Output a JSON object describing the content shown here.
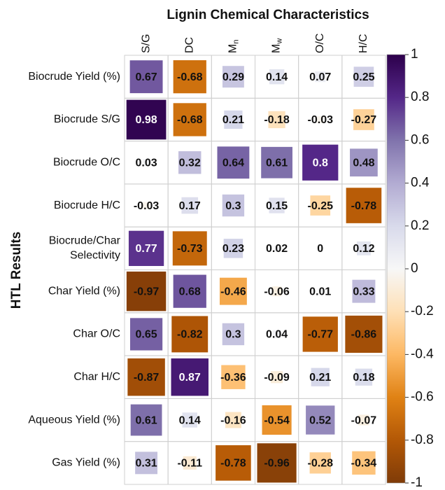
{
  "chart_data": {
    "type": "heatmap",
    "title": "Lignin Chemical Characteristics",
    "y_label": "HTL Results",
    "columns": [
      "S/G",
      "DC",
      {
        "main": "M",
        "sub": "n"
      },
      {
        "main": "M",
        "sub": "w"
      },
      "O/C",
      "H/C"
    ],
    "rows": [
      "Biocrude Yield (%)",
      "Biocrude S/G",
      "Biocrude O/C",
      "Biocrude H/C",
      [
        "Biocrude/Char",
        "Selectivity"
      ],
      "Char Yield (%)",
      "Char O/C",
      "Char H/C",
      "Aqueous Yield (%)",
      "Gas Yield (%)"
    ],
    "values": [
      [
        0.67,
        -0.68,
        0.29,
        0.14,
        0.07,
        0.25
      ],
      [
        0.98,
        -0.68,
        0.21,
        -0.18,
        -0.03,
        -0.27
      ],
      [
        0.03,
        0.32,
        0.64,
        0.61,
        0.8,
        0.48
      ],
      [
        -0.03,
        0.17,
        0.3,
        0.15,
        -0.25,
        -0.78
      ],
      [
        0.77,
        -0.73,
        0.23,
        0.02,
        0,
        0.12
      ],
      [
        -0.97,
        0.68,
        -0.46,
        -0.06,
        0.01,
        0.33
      ],
      [
        0.65,
        -0.82,
        0.3,
        0.04,
        -0.77,
        -0.86
      ],
      [
        -0.87,
        0.87,
        -0.36,
        -0.09,
        0.21,
        0.18
      ],
      [
        0.61,
        0.14,
        -0.16,
        -0.54,
        0.52,
        -0.07
      ],
      [
        0.31,
        -0.11,
        -0.78,
        -0.96,
        -0.28,
        -0.34
      ]
    ],
    "zlim": [
      -1,
      1
    ],
    "zticks": [
      -1,
      -0.8,
      -0.6,
      -0.4,
      -0.2,
      0,
      0.2,
      0.4,
      0.6,
      0.8,
      1
    ],
    "palette": [
      "#7f3b08",
      "#b35806",
      "#e08214",
      "#fdb863",
      "#fee0b6",
      "#f7f7f7",
      "#d8daeb",
      "#b2abd2",
      "#8073ac",
      "#542788",
      "#2d004b"
    ]
  }
}
